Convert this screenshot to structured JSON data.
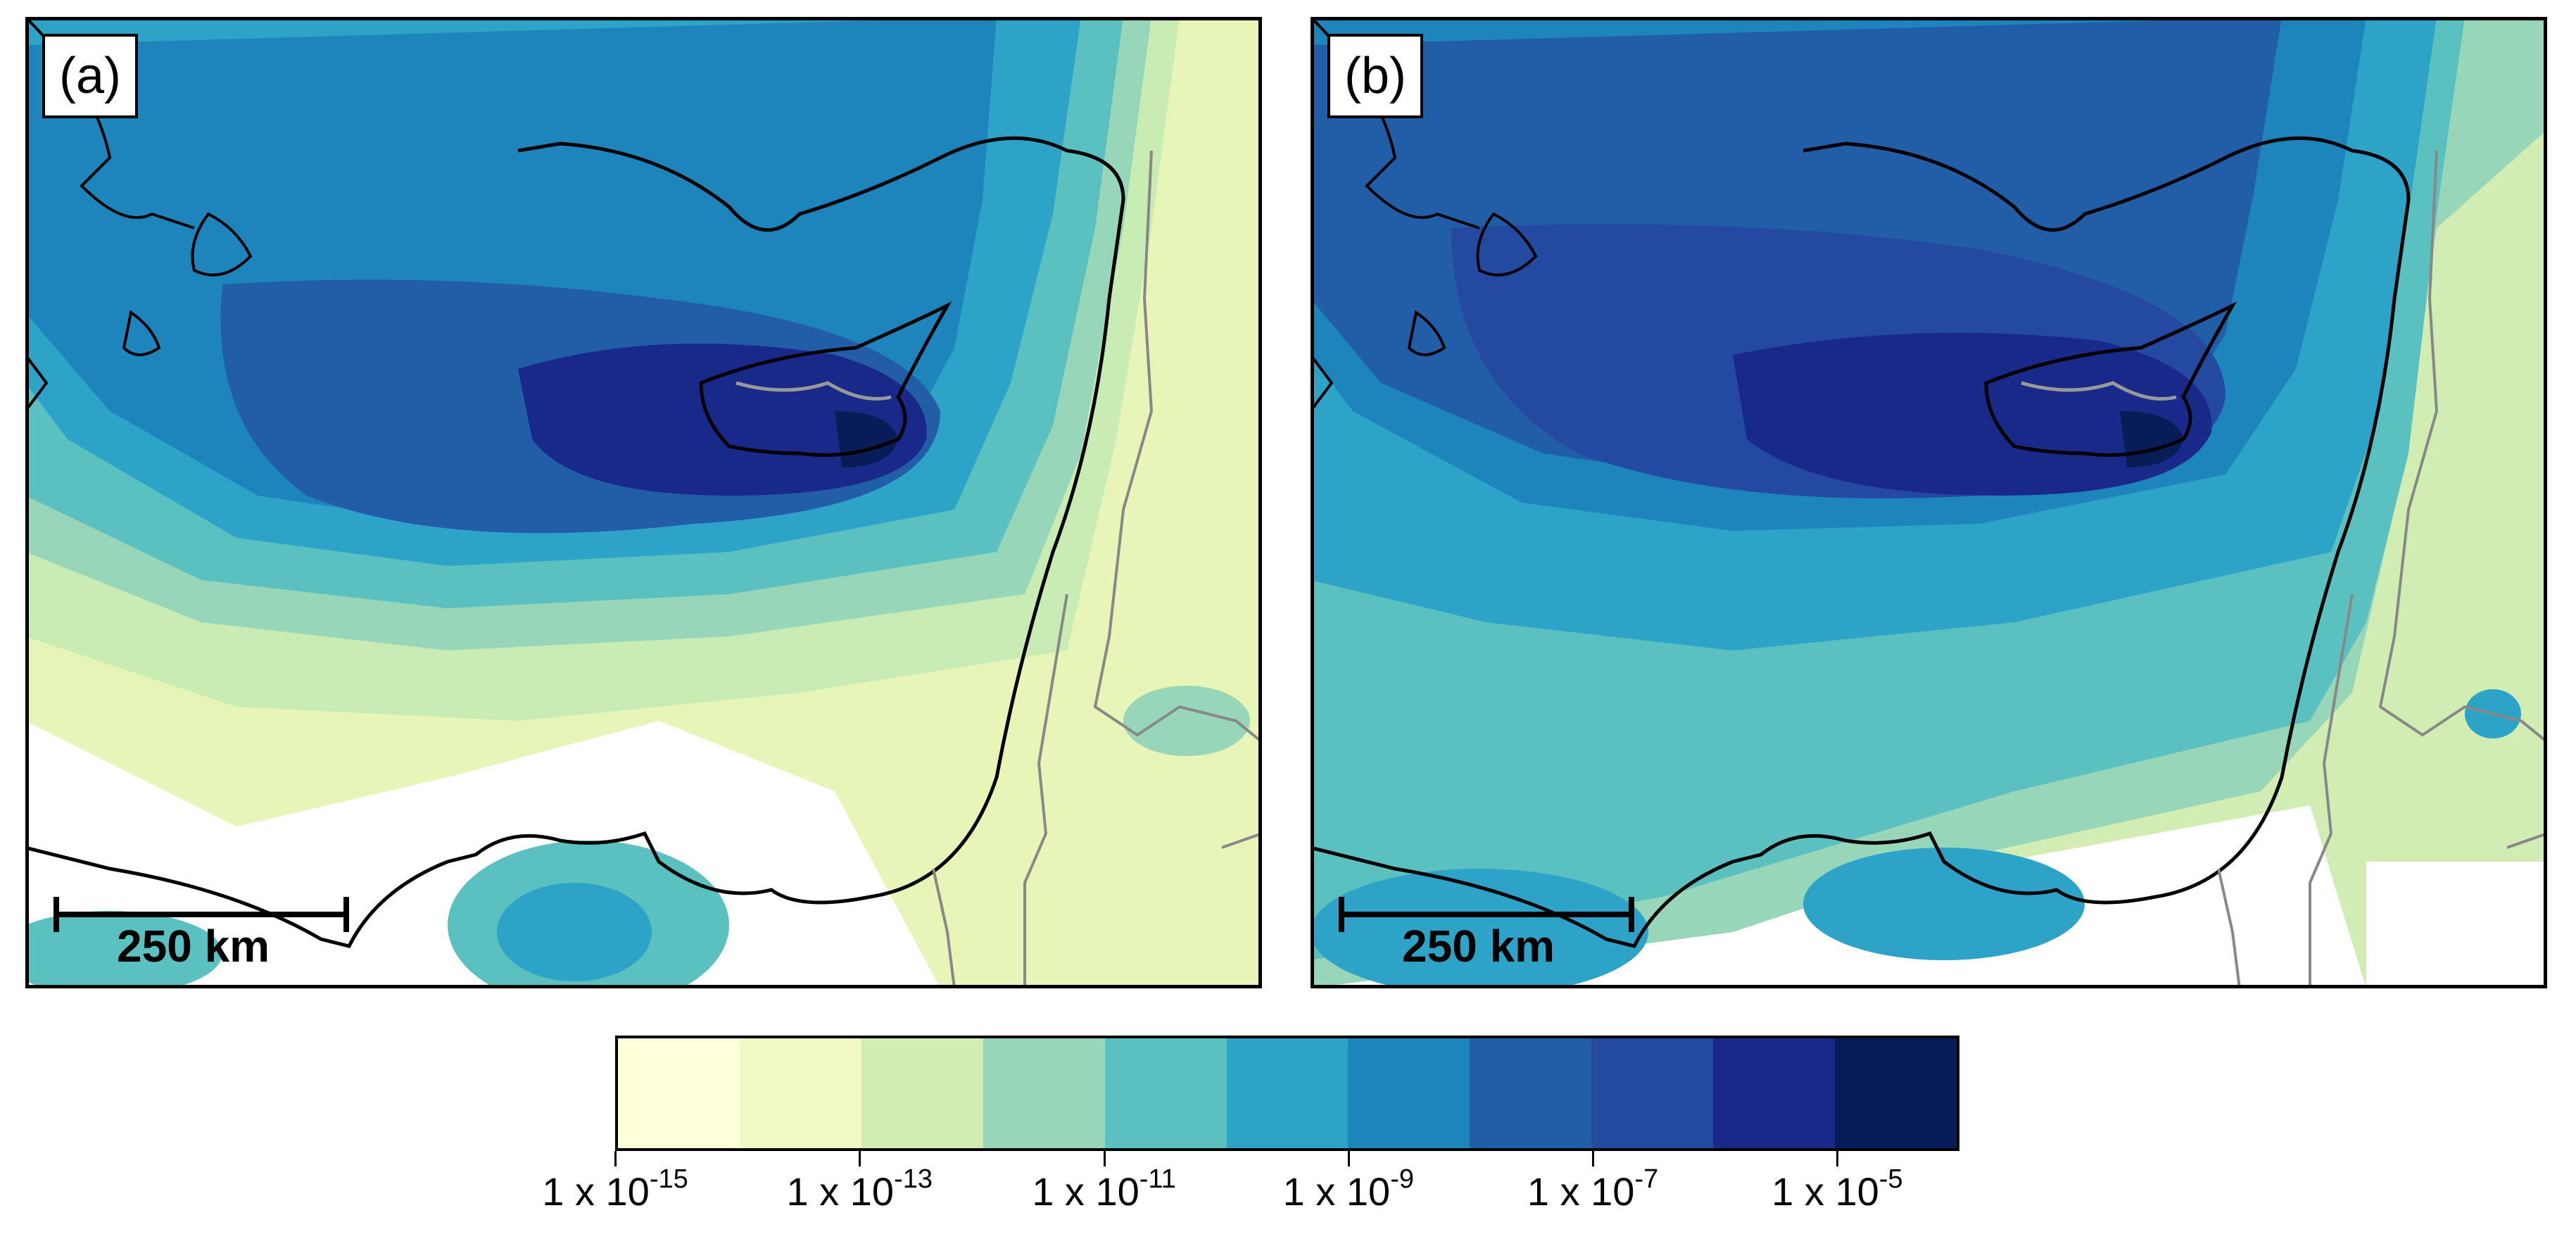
{
  "panels": [
    {
      "label": "(a)",
      "scale_bar": "250 km"
    },
    {
      "label": "(b)",
      "scale_bar": "250 km"
    }
  ],
  "colorbar": {
    "colors": [
      "#ffffd9",
      "#f0f9c4",
      "#d2edb3",
      "#97d6b9",
      "#5bc0c0",
      "#2ca3c7",
      "#1d85bc",
      "#225ea8",
      "#234aa0",
      "#19298a",
      "#081d58"
    ],
    "labels": [
      {
        "base": "1 x 10",
        "exp": "-15"
      },
      {
        "base": "1 x 10",
        "exp": "-13"
      },
      {
        "base": "1 x 10",
        "exp": "-11"
      },
      {
        "base": "1 x 10",
        "exp": "-9"
      },
      {
        "base": "1 x 10",
        "exp": "-7"
      },
      {
        "base": "1 x 10",
        "exp": "-5"
      }
    ]
  }
}
